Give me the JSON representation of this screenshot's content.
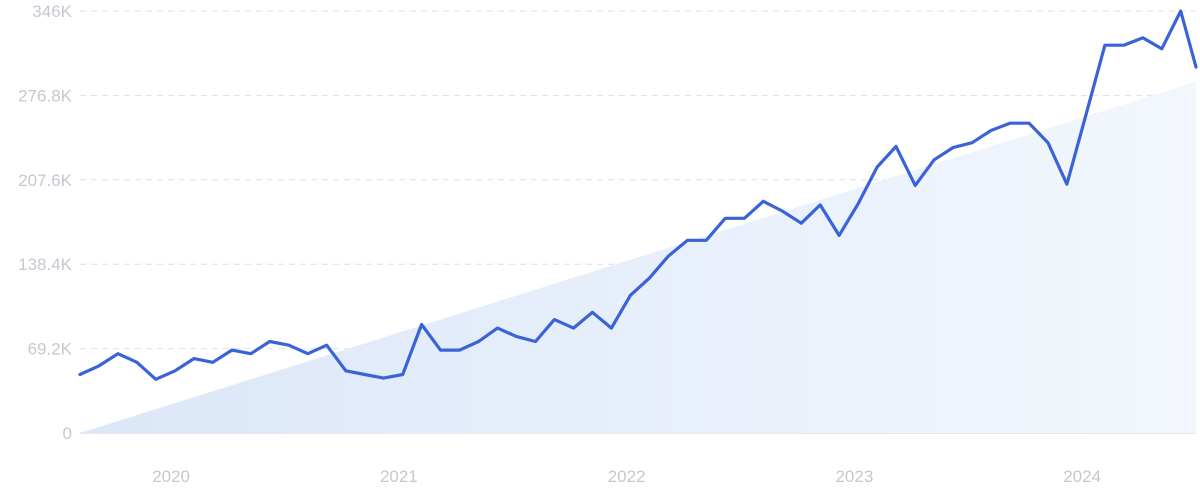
{
  "chart_data": {
    "type": "line",
    "title": "",
    "xlabel": "",
    "ylabel": "",
    "y_ticks": [
      "0",
      "69.2K",
      "138.4K",
      "207.6K",
      "276.8K",
      "346K"
    ],
    "y_tick_values": [
      0,
      69200,
      138400,
      207600,
      276800,
      346000
    ],
    "ylim": [
      0,
      346000
    ],
    "xlim": [
      2019.6,
      2024.5
    ],
    "x_ticks": [
      "2020",
      "2021",
      "2022",
      "2023",
      "2024"
    ],
    "x_tick_values": [
      2020.0,
      2021.0,
      2022.0,
      2023.0,
      2024.0
    ],
    "grid": true,
    "legend": "none",
    "colors": {
      "line": "#3b63d9",
      "trend_fill": "#dfeaf9",
      "grid": "#dde1e6",
      "text": "#c4c8d0"
    },
    "trend": {
      "x": [
        2019.6,
        2024.5
      ],
      "y": [
        0,
        288000
      ]
    },
    "series": [
      {
        "x": [
          2019.6,
          2019.683,
          2019.767,
          2019.85,
          2019.933,
          2020.017,
          2020.1,
          2020.183,
          2020.267,
          2020.35,
          2020.433,
          2020.517,
          2020.6,
          2020.683,
          2020.767,
          2020.85,
          2020.933,
          2021.017,
          2021.1,
          2021.183,
          2021.267,
          2021.35,
          2021.433,
          2021.517,
          2021.6,
          2021.683,
          2021.767,
          2021.85,
          2021.933,
          2022.017,
          2022.1,
          2022.183,
          2022.267,
          2022.35,
          2022.433,
          2022.517,
          2022.6,
          2022.683,
          2022.767,
          2022.85,
          2022.933,
          2023.017,
          2023.1,
          2023.183,
          2023.267,
          2023.35,
          2023.433,
          2023.517,
          2023.6,
          2023.683,
          2023.767,
          2023.85,
          2023.933,
          2024.017,
          2024.1,
          2024.183,
          2024.267,
          2024.35,
          2024.433,
          2024.5
        ],
        "y": [
          48000,
          55000,
          65000,
          58000,
          44000,
          51000,
          61000,
          58000,
          68000,
          65000,
          75000,
          72000,
          65000,
          72000,
          51000,
          48000,
          45000,
          48000,
          89000,
          68000,
          68000,
          75000,
          86000,
          79000,
          75000,
          93000,
          86000,
          99000,
          86000,
          113000,
          127000,
          145000,
          158000,
          158000,
          176000,
          176000,
          190000,
          182000,
          172000,
          187000,
          162000,
          188000,
          218000,
          235000,
          203000,
          224000,
          234000,
          238000,
          248000,
          254000,
          254000,
          238000,
          204000,
          261000,
          318000,
          318000,
          324000,
          315000,
          346000,
          300000
        ]
      }
    ]
  }
}
